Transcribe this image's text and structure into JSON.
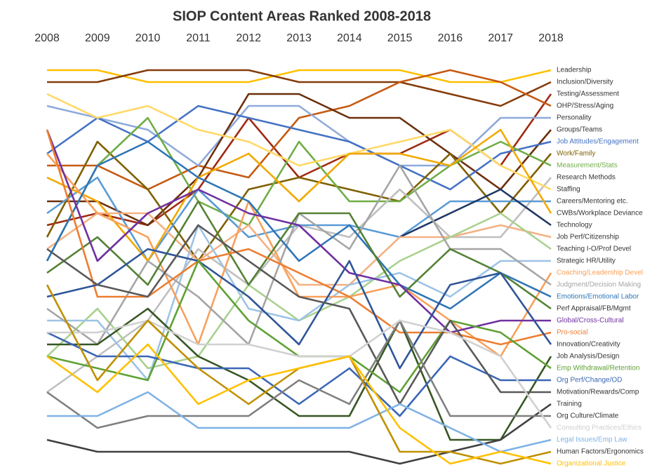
{
  "chart_data": {
    "type": "line",
    "title": "SIOP Content Areas Ranked 2008-2018",
    "categories": [
      "2008",
      "2009",
      "2010",
      "2011",
      "2012",
      "2013",
      "2014",
      "2015",
      "2016",
      "2017",
      "2018"
    ],
    "ylim": [
      1,
      34
    ],
    "invert_y": true,
    "series": [
      {
        "name": "Leadership",
        "color": "#ffc000",
        "values": [
          1,
          1,
          2,
          2,
          2,
          1,
          1,
          1,
          2,
          2,
          1
        ]
      },
      {
        "name": "Inclusion/Diversity",
        "color": "#843c0c",
        "values": [
          2,
          2,
          1,
          1,
          1,
          2,
          2,
          2,
          3,
          4,
          2
        ]
      },
      {
        "name": "Testing/Assessment",
        "color": "#9e2a12",
        "values": [
          14,
          13,
          14,
          11,
          5,
          10,
          8,
          8,
          6,
          9,
          3
        ]
      },
      {
        "name": "OHP/Stress/Aging",
        "color": "#c55a11",
        "values": [
          9,
          9,
          11,
          9,
          10,
          5,
          4,
          2,
          1,
          2,
          4
        ]
      },
      {
        "name": "Personality",
        "color": "#8eaadb",
        "values": [
          4,
          5,
          6,
          9,
          4,
          4,
          7,
          9,
          9,
          5,
          5
        ]
      },
      {
        "name": "Groups/Teams",
        "color": "#6b2f0a",
        "values": [
          12,
          12,
          14,
          10,
          3,
          3,
          5,
          5,
          8,
          11,
          6
        ]
      },
      {
        "name": "Job Attitudes/Engagement",
        "color": "#4472c4",
        "values": [
          8,
          5,
          7,
          4,
          5,
          6,
          7,
          9,
          11,
          8,
          7
        ]
      },
      {
        "name": "Work/Family",
        "color": "#7f6000",
        "values": [
          15,
          7,
          11,
          17,
          11,
          10,
          11,
          12,
          8,
          13,
          8
        ]
      },
      {
        "name": "Measurement/Stats",
        "color": "#70ad47",
        "values": [
          17,
          9,
          5,
          12,
          14,
          7,
          12,
          12,
          9,
          7,
          9
        ]
      },
      {
        "name": "Research Methods",
        "color": "#bfbfbf",
        "values": [
          28,
          25,
          22,
          16,
          19,
          14,
          15,
          11,
          15,
          15,
          10
        ]
      },
      {
        "name": "Staffing",
        "color": "#ffd966",
        "values": [
          3,
          5,
          4,
          6,
          7,
          9,
          8,
          7,
          6,
          9,
          11
        ]
      },
      {
        "name": "Careers/Mentoring etc.",
        "color": "#5b9bd5",
        "values": [
          13,
          10,
          17,
          11,
          15,
          14,
          14,
          15,
          12,
          12,
          12
        ]
      },
      {
        "name": "CWBs/Workplace Deviance",
        "color": "#f2a900",
        "values": [
          10,
          12,
          17,
          10,
          8,
          12,
          8,
          8,
          9,
          6,
          13
        ]
      },
      {
        "name": "Technology",
        "color": "#1f3864",
        "values": [
          null,
          null,
          null,
          null,
          null,
          null,
          null,
          15,
          13,
          11,
          14
        ]
      },
      {
        "name": "Job Perf/Citizenship",
        "color": "#f4b183",
        "values": [
          16,
          13,
          13,
          17,
          14,
          19,
          19,
          15,
          15,
          14,
          15
        ]
      },
      {
        "name": "Teaching I-O/Prof Devel",
        "color": "#a9d18e",
        "values": [
          25,
          21,
          26,
          25,
          19,
          22,
          20,
          17,
          15,
          13,
          16
        ]
      },
      {
        "name": "Strategic HR/Utility",
        "color": "#9dc3e6",
        "values": [
          22,
          22,
          27,
          14,
          21,
          22,
          19,
          18,
          20,
          17,
          17
        ]
      },
      {
        "name": "Coaching/Leadership Devel",
        "color": "#f8a05a",
        "values": [
          8,
          13,
          15,
          24,
          12,
          20,
          20,
          19,
          22,
          25,
          18
        ]
      },
      {
        "name": "Judgment/Decision Making",
        "color": "#a5a5a5",
        "values": [
          21,
          24,
          17,
          20,
          24,
          13,
          16,
          9,
          16,
          16,
          19
        ]
      },
      {
        "name": "Emotions/Emotional Labor",
        "color": "#2e75b6",
        "values": [
          17,
          9,
          7,
          10,
          12,
          17,
          14,
          19,
          21,
          18,
          20
        ]
      },
      {
        "name": "Perf Appraisal/FB/Mgmt",
        "color": "#548235",
        "values": [
          18,
          15,
          19,
          12,
          19,
          13,
          13,
          20,
          16,
          18,
          21
        ]
      },
      {
        "name": "Global/Cross-Cultural",
        "color": "#7030a0",
        "values": [
          6,
          17,
          13,
          11,
          13,
          14,
          18,
          19,
          23,
          22,
          22
        ]
      },
      {
        "name": "Pro-social",
        "color": "#ed7d31",
        "values": [
          6,
          20,
          20,
          17,
          16,
          18,
          20,
          23,
          23,
          24,
          23
        ]
      },
      {
        "name": "Innovation/Creativity",
        "color": "#2f5597",
        "values": [
          20,
          19,
          16,
          17,
          20,
          24,
          17,
          26,
          19,
          18,
          24
        ]
      },
      {
        "name": "Job Analysis/Design",
        "color": "#375623",
        "values": [
          24,
          24,
          21,
          25,
          27,
          30,
          30,
          22,
          32,
          32,
          25
        ]
      },
      {
        "name": "Emp Withdrawal/Retention",
        "color": "#5fa134",
        "values": [
          25,
          26,
          27,
          17,
          22,
          25,
          25,
          28,
          22,
          23,
          26
        ]
      },
      {
        "name": "Org Perf/Change/OD",
        "color": "#3a66b5",
        "values": [
          23,
          25,
          25,
          26,
          26,
          29,
          26,
          30,
          25,
          27,
          27
        ]
      },
      {
        "name": "Motivation/Rewards/Comp",
        "color": "#595959",
        "values": [
          16,
          19,
          20,
          14,
          17,
          20,
          21,
          29,
          22,
          28,
          28
        ]
      },
      {
        "name": "Training",
        "color": "#404040",
        "values": [
          32,
          33,
          33,
          33,
          33,
          33,
          33,
          34,
          33,
          32,
          29
        ]
      },
      {
        "name": "Org Culture/Climate",
        "color": "#7f7f7f",
        "values": [
          28,
          31,
          30,
          30,
          30,
          27,
          29,
          22,
          30,
          30,
          30
        ]
      },
      {
        "name": "Consulting Practices/Ethics",
        "color": "#d0d0d0",
        "values": [
          23,
          23,
          22,
          24,
          24,
          25,
          25,
          22,
          23,
          25,
          31
        ]
      },
      {
        "name": "Legal Issues/Emp Law",
        "color": "#7fb2e5",
        "values": [
          30,
          30,
          28,
          31,
          31,
          31,
          31,
          29,
          31,
          33,
          32
        ]
      },
      {
        "name": "Human Factors/Ergonomics",
        "color": "#bf9000",
        "values": [
          19,
          27,
          22,
          26,
          29,
          26,
          25,
          33,
          33,
          34,
          33
        ]
      },
      {
        "name": "Organizational Justice",
        "color": "#ffc000",
        "values": [
          25,
          28,
          24,
          29,
          27,
          26,
          25,
          31,
          34,
          33,
          34
        ]
      }
    ]
  }
}
